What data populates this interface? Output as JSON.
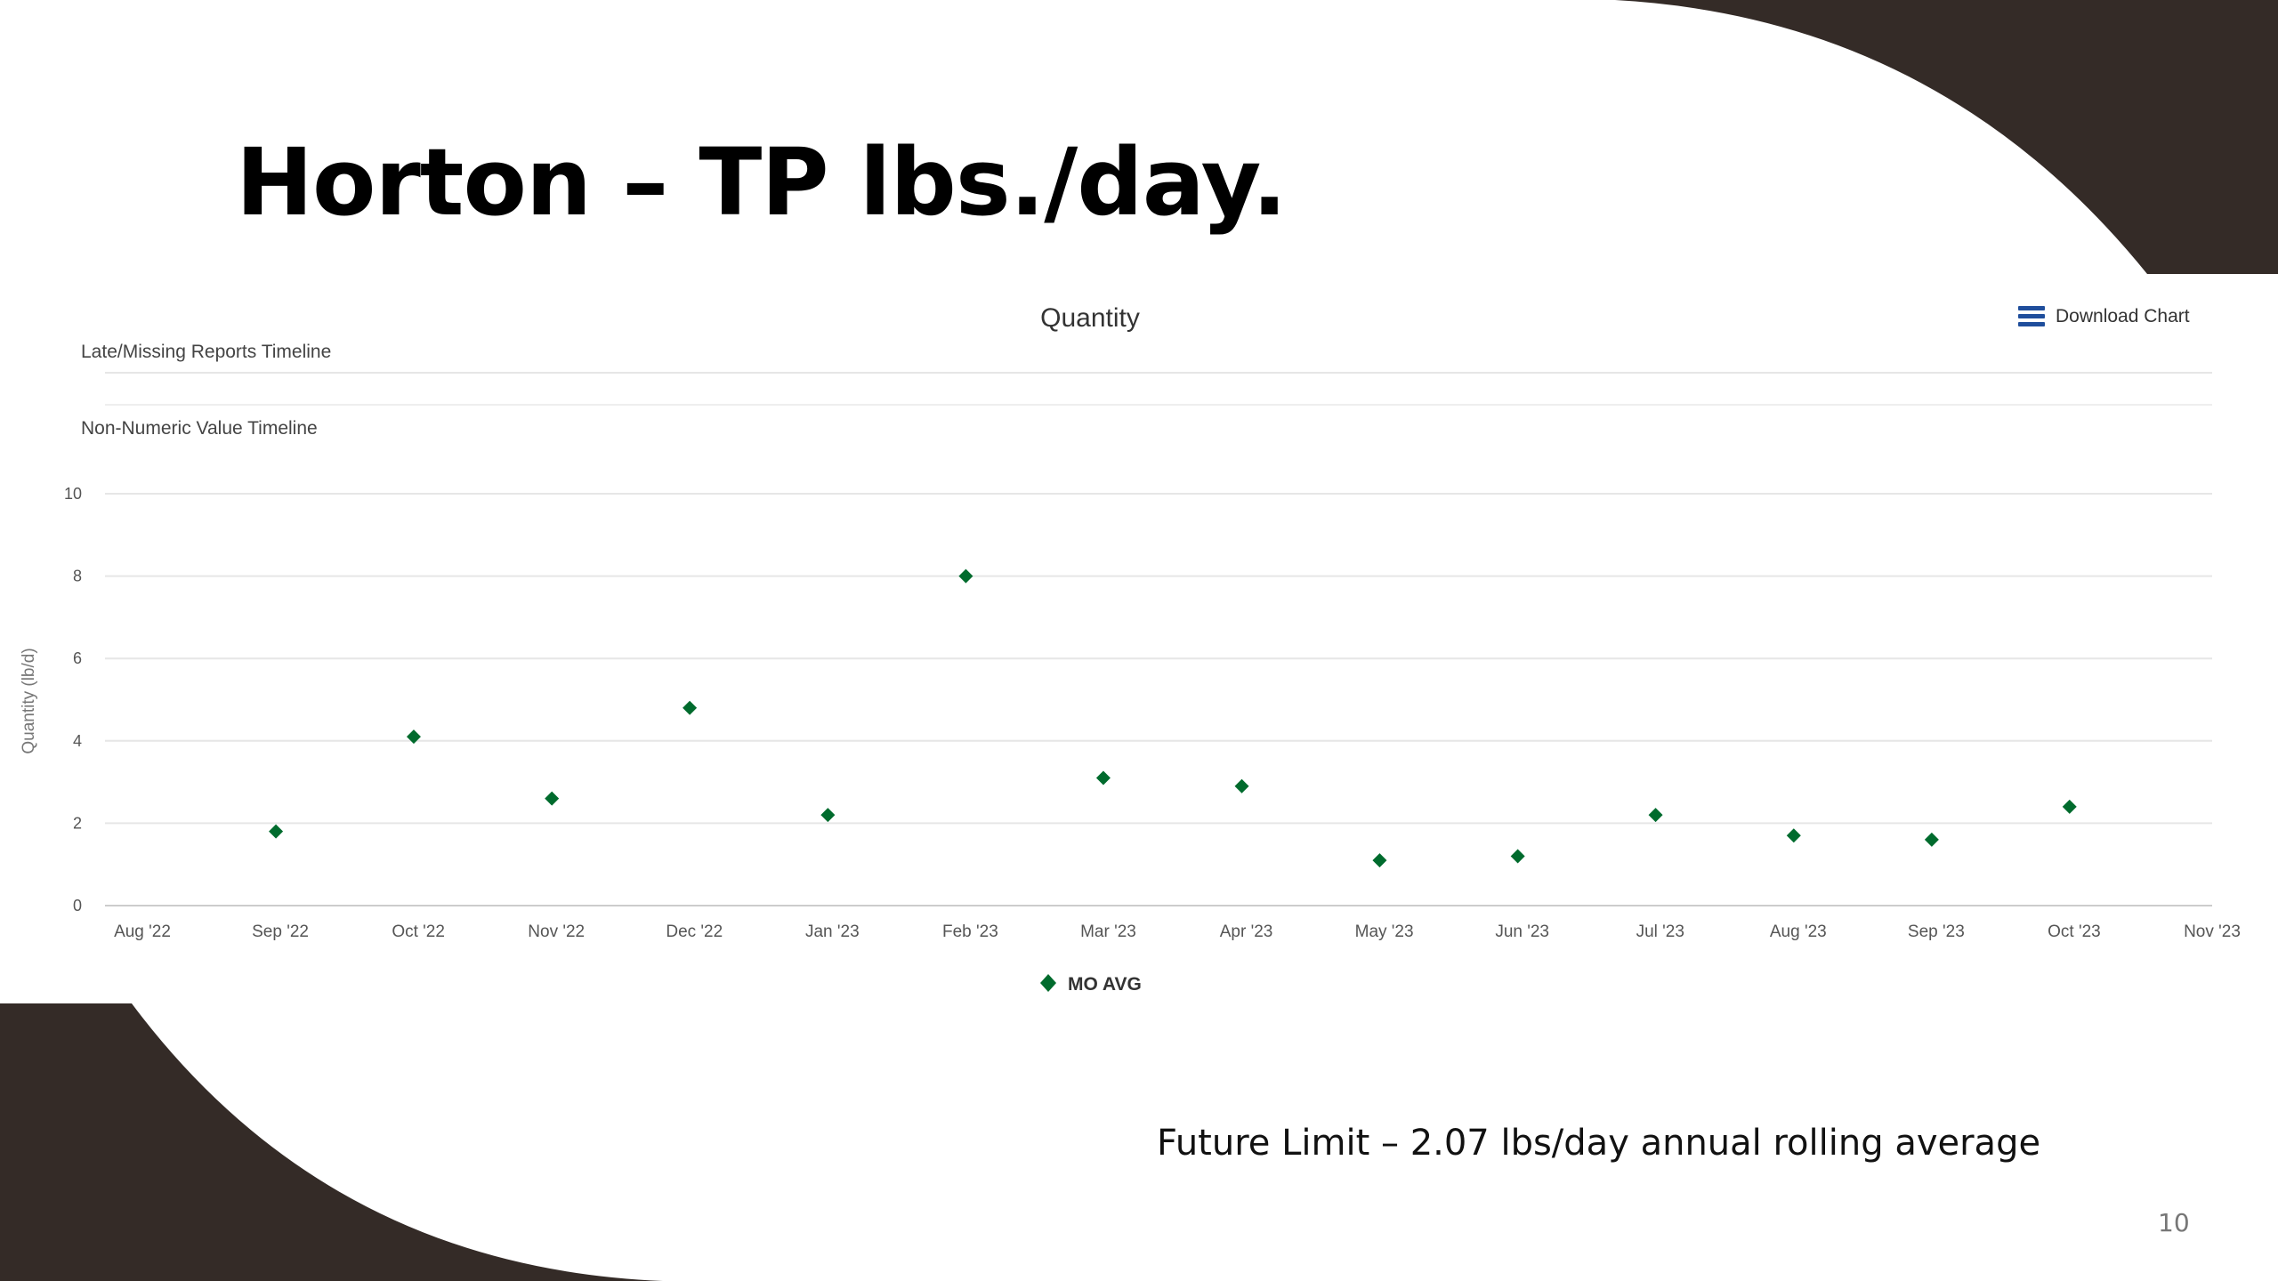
{
  "slide": {
    "title": "Horton – TP lbs./day.",
    "footnote": "Future Limit – 2.07 lbs/day annual rolling average",
    "page_number": "10",
    "decor_color": "#342b27"
  },
  "chart_toolbar": {
    "download_label": "Download Chart",
    "menu_icon": "hamburger-menu-icon",
    "menu_icon_color": "#1f4e9c"
  },
  "chart_data": {
    "type": "scatter",
    "title": "Quantity",
    "timelines": [
      "Late/Missing Reports Timeline",
      "Non-Numeric Value Timeline"
    ],
    "ylabel": "Quantity (lb/d)",
    "xlabel": "",
    "ylim": [
      0,
      10
    ],
    "yticks": [
      0,
      2,
      4,
      6,
      8,
      10
    ],
    "x_tick_labels": [
      "Aug '22",
      "Sep '22",
      "Oct '22",
      "Nov '22",
      "Dec '22",
      "Jan '23",
      "Feb '23",
      "Mar '23",
      "Apr '23",
      "May '23",
      "Jun '23",
      "Jul '23",
      "Aug '23",
      "Sep '23",
      "Oct '23",
      "Nov '23"
    ],
    "grid": true,
    "legend_position": "bottom-center",
    "marker": "diamond",
    "color": "#006b2d",
    "series": [
      {
        "name": "MO AVG",
        "points": [
          {
            "x": "2022-08-31",
            "y": 1.8
          },
          {
            "x": "2022-09-30",
            "y": 4.1
          },
          {
            "x": "2022-10-31",
            "y": 2.6
          },
          {
            "x": "2022-11-30",
            "y": 4.8
          },
          {
            "x": "2022-12-31",
            "y": 2.2
          },
          {
            "x": "2023-01-31",
            "y": 8.0
          },
          {
            "x": "2023-02-28",
            "y": 3.1
          },
          {
            "x": "2023-03-31",
            "y": 2.9
          },
          {
            "x": "2023-04-30",
            "y": 1.1
          },
          {
            "x": "2023-05-31",
            "y": 1.2
          },
          {
            "x": "2023-06-30",
            "y": 2.2
          },
          {
            "x": "2023-07-31",
            "y": 1.7
          },
          {
            "x": "2023-08-31",
            "y": 1.6
          },
          {
            "x": "2023-09-30",
            "y": 2.4
          }
        ]
      }
    ]
  }
}
